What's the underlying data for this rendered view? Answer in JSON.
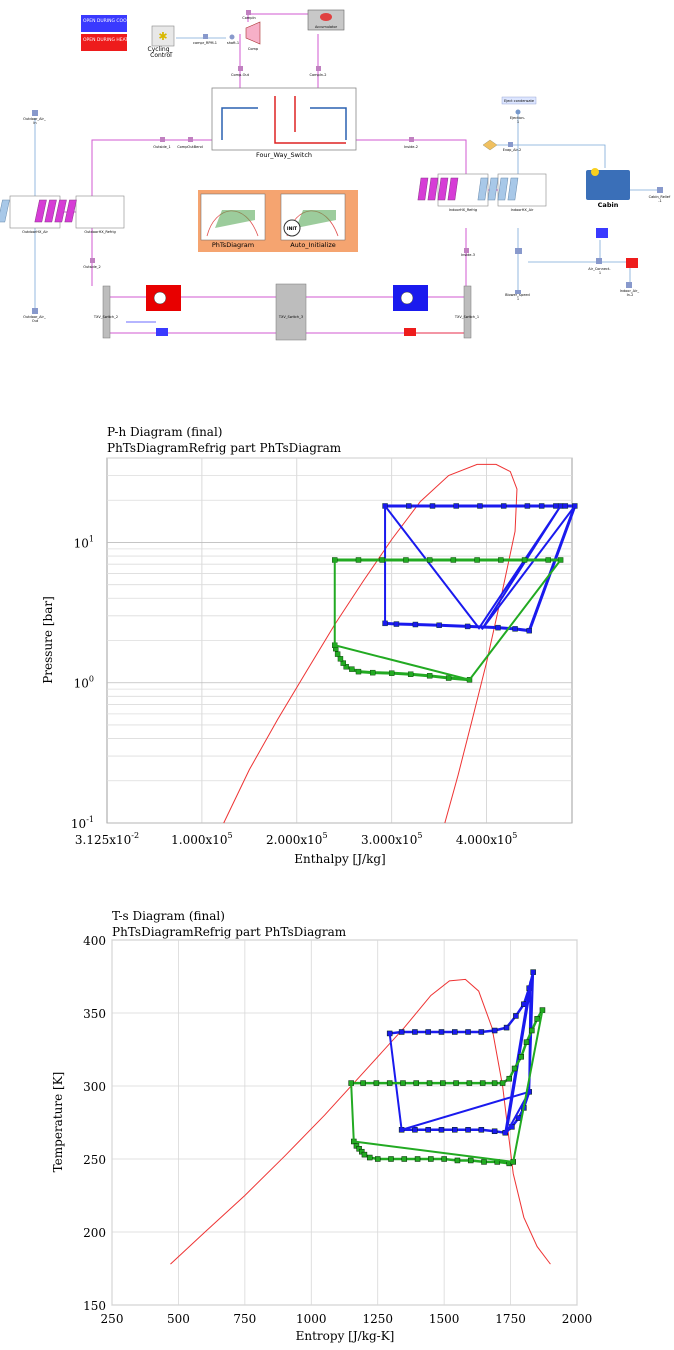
{
  "legend": {
    "cooling": "OPEN DURING COOLING MODE",
    "heating": "OPEN DURING HEATING MODE",
    "cooling_color": "#3a3aff",
    "heating_color": "#ee1c1c"
  },
  "colors": {
    "wire": "#d25ad2",
    "signal": "#7aa7d8",
    "hx_magenta": "#d63cd6",
    "tile_bg": "#f5a470",
    "heat_red": "#e80000",
    "cool_blue": "#1a1aee"
  },
  "components": {
    "cycling_control": "Cycling_\nControl",
    "four_way_switch": "Four_Way_Switch",
    "phts_diagram": "PhTsDiagram",
    "auto_initialize": "Auto_Initialize",
    "init_label": "INIT",
    "cabin": "Cabin",
    "eject_condensate": "Eject condensate",
    "comp": "Comp",
    "accumulator": "Accumulator",
    "comp_in": "CompIn",
    "comp_out": "Comp-Out",
    "comp_in2": "CompIn-2",
    "compr_rpm": "compr_RPM-1",
    "shaft": "shaft-1",
    "outside_1": "Outside_1",
    "comp_outbend": "CompOutBend",
    "inside_2": "Inside-2",
    "evap_air": "Evap_Air-2",
    "outdoor_air_in": "Outdoor_Air_\nIn",
    "outdoor_air_out": "Outdoor_Air_\nOut",
    "outdoor_hx_air": "OutdoorHX_Air",
    "outdoor_hx_refrig": "OutdoorHX_Refrig",
    "outside_2": "Outside_2",
    "txv_switch_2": "TXV_Switch_2",
    "txv_switch_3": "TXV_Switch_3",
    "txv_switch_1": "TXV_Switch_1",
    "indoor_hx_refrig": "IndoorHX_Refrig",
    "indoor_hx_air": "IndoorHX_Air",
    "inside_3": "Inside-3",
    "blower_speed": "Blower_Speed\n1",
    "air_connect": "Air_Connect-\n1",
    "indoor_air_in": "Indoor_Air_\nIn-2",
    "cabin_relief": "Cabin_Relief\n-1",
    "ejection": "Ejection-\n1",
    "ef": "EF",
    "blower": "BF"
  },
  "chart_data": [
    {
      "type": "line",
      "title": "P-h Diagram (final)",
      "subtitle": "PhTsDiagramRefrig part PhTsDiagram",
      "xlabel": "Enthalpy [J/kg]",
      "ylabel": "Pressure [bar]",
      "xlim": [
        0.03125,
        490000
      ],
      "ylim": [
        0.1,
        40
      ],
      "yscale": "log",
      "grid": true,
      "xtick_labels": [
        "3.125x10",
        "1.000x10",
        "2.000x10",
        "3.000x10",
        "4.000x10"
      ],
      "xtick_exps": [
        "-2",
        "5",
        "5",
        "5",
        "5"
      ],
      "xtick_values": [
        0,
        100000,
        200000,
        300000,
        400000
      ],
      "ytick_labels": [
        "10",
        "10",
        "10"
      ],
      "ytick_exps": [
        "-1",
        "0",
        "1"
      ],
      "ytick_values": [
        0.1,
        1,
        10
      ],
      "series": [
        {
          "color": "#ee3333",
          "marker": false,
          "x": [
            123000,
            150000,
            180000,
            210000,
            240000,
            270000,
            300000,
            330000,
            360000,
            390000,
            410000,
            425000,
            432000,
            430000,
            415000,
            400000,
            385000,
            370000,
            356000
          ],
          "y": [
            0.1,
            0.24,
            0.55,
            1.2,
            2.6,
            5.3,
            10.5,
            19.5,
            30,
            36,
            36,
            32,
            24,
            12,
            4,
            1.4,
            0.55,
            0.22,
            0.1
          ]
        },
        {
          "color": "#1a1aee",
          "marker": true,
          "x": [
            293000,
            318000,
            343000,
            368000,
            393000,
            418000,
            443000,
            458000,
            473000,
            478000,
            483000,
            493000,
            445000,
            430000,
            412000,
            380000,
            350000,
            325000,
            305000,
            293000
          ],
          "y": [
            18.2,
            18.2,
            18.2,
            18.2,
            18.2,
            18.2,
            18.2,
            18.2,
            18.2,
            18.2,
            18.2,
            18.2,
            2.35,
            2.42,
            2.47,
            2.52,
            2.57,
            2.6,
            2.62,
            2.65
          ]
        },
        {
          "color": "#1a1aee",
          "marker": false,
          "x": [
            293000,
            293000,
            392000,
            478000,
            395000,
            493000
          ],
          "y": [
            2.65,
            18.2,
            2.45,
            18.2,
            2.4,
            18.2
          ]
        },
        {
          "color": "#22aa22",
          "marker": true,
          "x": [
            240000,
            265000,
            290000,
            315000,
            340000,
            365000,
            390000,
            415000,
            440000,
            465000,
            478000
          ],
          "y": [
            7.5,
            7.5,
            7.5,
            7.5,
            7.5,
            7.5,
            7.5,
            7.5,
            7.5,
            7.5,
            7.5
          ]
        },
        {
          "color": "#22aa22",
          "marker": true,
          "x": [
            382000,
            360000,
            340000,
            320000,
            300000,
            280000,
            265000,
            258000,
            252000,
            249000,
            246000,
            243000,
            241000,
            240000
          ],
          "y": [
            1.05,
            1.08,
            1.12,
            1.15,
            1.17,
            1.18,
            1.2,
            1.25,
            1.3,
            1.38,
            1.48,
            1.6,
            1.75,
            1.85
          ]
        },
        {
          "color": "#22aa22",
          "marker": false,
          "x": [
            240000,
            240000,
            382000,
            478000
          ],
          "y": [
            7.5,
            1.85,
            1.05,
            7.5
          ]
        }
      ]
    },
    {
      "type": "line",
      "title": "T-s Diagram (final)",
      "subtitle": "PhTsDiagramRefrig part PhTsDiagram",
      "xlabel": "Entropy [J/kg-K]",
      "ylabel": "Temperature [K]",
      "xlim": [
        250,
        2000
      ],
      "ylim": [
        150,
        400
      ],
      "grid": true,
      "xticks": [
        250,
        500,
        750,
        1000,
        1250,
        1500,
        1750,
        2000
      ],
      "yticks": [
        150,
        200,
        250,
        300,
        350,
        400
      ],
      "series": [
        {
          "color": "#ee3333",
          "marker": false,
          "x": [
            470,
            600,
            750,
            900,
            1050,
            1200,
            1350,
            1450,
            1520,
            1580,
            1630,
            1680,
            1720,
            1760,
            1800,
            1850,
            1900
          ],
          "y": [
            178,
            200,
            225,
            252,
            280,
            310,
            340,
            362,
            372,
            373,
            365,
            340,
            300,
            240,
            210,
            190,
            178
          ]
        },
        {
          "color": "#1a1aee",
          "marker": true,
          "x": [
            1295,
            1340,
            1390,
            1440,
            1490,
            1540,
            1590,
            1640,
            1690,
            1735,
            1770,
            1800,
            1820,
            1835
          ],
          "y": [
            336,
            337,
            337,
            337,
            337,
            337,
            337,
            337,
            338,
            340,
            348,
            356,
            367,
            378
          ]
        },
        {
          "color": "#1a1aee",
          "marker": true,
          "x": [
            1340,
            1390,
            1440,
            1490,
            1540,
            1590,
            1640,
            1690,
            1730,
            1755,
            1780,
            1800,
            1820
          ],
          "y": [
            270,
            270,
            270,
            270,
            270,
            270,
            270,
            269,
            268,
            272,
            278,
            285,
            296
          ]
        },
        {
          "color": "#1a1aee",
          "marker": false,
          "x": [
            1295,
            1340,
            1820,
            1835,
            1735,
            1820,
            1825,
            1730
          ],
          "y": [
            336,
            270,
            296,
            378,
            268,
            296,
            372,
            268
          ]
        },
        {
          "color": "#22aa22",
          "marker": true,
          "x": [
            1150,
            1195,
            1245,
            1295,
            1345,
            1395,
            1445,
            1495,
            1545,
            1595,
            1645,
            1690,
            1720,
            1745,
            1765,
            1790,
            1810,
            1830,
            1850,
            1870
          ],
          "y": [
            302,
            302,
            302,
            302,
            302,
            302,
            302,
            302,
            302,
            302,
            302,
            302,
            302,
            305,
            312,
            320,
            330,
            338,
            346,
            352
          ]
        },
        {
          "color": "#22aa22",
          "marker": true,
          "x": [
            1160,
            1170,
            1180,
            1190,
            1200,
            1220,
            1250,
            1300,
            1350,
            1400,
            1450,
            1500,
            1550,
            1600,
            1650,
            1700,
            1745,
            1760
          ],
          "y": [
            262,
            259,
            257,
            255,
            253,
            251,
            250,
            250,
            250,
            250,
            250,
            250,
            249,
            249,
            248,
            248,
            247,
            248
          ]
        },
        {
          "color": "#22aa22",
          "marker": false,
          "x": [
            1150,
            1160,
            1760,
            1870
          ],
          "y": [
            302,
            262,
            248,
            352
          ]
        }
      ]
    }
  ]
}
